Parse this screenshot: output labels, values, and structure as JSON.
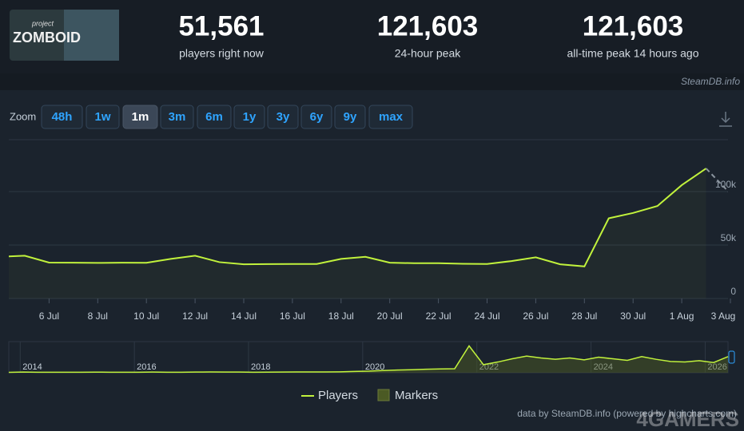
{
  "header": {
    "logo": {
      "small": "project",
      "big": "ZOMBOID"
    },
    "stats": [
      {
        "value": "51,561",
        "label": "players right now"
      },
      {
        "value": "121,603",
        "label": "24-hour peak"
      },
      {
        "value": "121,603",
        "label": "all-time peak 14 hours ago"
      }
    ],
    "source": "SteamDB.info"
  },
  "zoom": {
    "label": "Zoom",
    "options": [
      "48h",
      "1w",
      "1m",
      "3m",
      "6m",
      "1y",
      "3y",
      "6y",
      "9y",
      "max"
    ],
    "selected": "1m"
  },
  "chart_data": {
    "type": "line",
    "x": [
      "4 Jul",
      "5 Jul",
      "6 Jul",
      "7 Jul",
      "8 Jul",
      "9 Jul",
      "10 Jul",
      "11 Jul",
      "12 Jul",
      "13 Jul",
      "14 Jul",
      "15 Jul",
      "16 Jul",
      "17 Jul",
      "18 Jul",
      "19 Jul",
      "20 Jul",
      "21 Jul",
      "22 Jul",
      "23 Jul",
      "24 Jul",
      "25 Jul",
      "26 Jul",
      "27 Jul",
      "28 Jul",
      "29 Jul",
      "30 Jul",
      "31 Jul",
      "1 Aug",
      "2 Aug",
      "3 Aug"
    ],
    "series": [
      {
        "name": "Players",
        "color": "#c1f23c",
        "values": [
          39000,
          40000,
          33600,
          33500,
          33300,
          33500,
          33400,
          37000,
          40000,
          34000,
          32000,
          32200,
          32300,
          32300,
          37000,
          39000,
          33500,
          33000,
          33000,
          32500,
          32300,
          35000,
          38500,
          32000,
          30000,
          75000,
          80000,
          86500,
          106000,
          121603,
          98000
        ]
      }
    ],
    "markers": {
      "name": "Markers",
      "color": "#4b5a24"
    },
    "last_segment_dashed": true,
    "ylim": [
      0,
      148500
    ],
    "yticks": [
      0,
      {
        "value": 50000,
        "label": "50k"
      },
      {
        "value": 100000,
        "label": "100k"
      }
    ],
    "xticks": [
      "6 Jul",
      "8 Jul",
      "10 Jul",
      "12 Jul",
      "14 Jul",
      "16 Jul",
      "18 Jul",
      "20 Jul",
      "22 Jul",
      "24 Jul",
      "26 Jul",
      "28 Jul",
      "30 Jul",
      "1 Aug",
      "3 Aug"
    ],
    "grid": true,
    "navigator": {
      "xlim": [
        2013.8,
        2026.4
      ],
      "xticks": [
        2014,
        2016,
        2018,
        2020,
        2022,
        2024,
        2026
      ],
      "ylim": [
        0,
        110000
      ],
      "values": [
        1500,
        2500,
        2000,
        2000,
        1800,
        2000,
        2200,
        2000,
        1800,
        2000,
        2500,
        2000,
        2000,
        2500,
        3000,
        2500,
        2500,
        2000,
        2200,
        2500,
        3000,
        2800,
        3000,
        3500,
        5000,
        6000,
        8000,
        10000,
        11000,
        13000,
        14000,
        15000,
        100000,
        30000,
        40000,
        52000,
        62000,
        55000,
        50000,
        55000,
        48000,
        58000,
        52000,
        46000,
        60000,
        50000,
        42000,
        40000,
        45000,
        38000,
        60000
      ]
    }
  },
  "credit": "data by SteamDB.info (powered by highcharts.com)",
  "watermark": "4GAMERS"
}
